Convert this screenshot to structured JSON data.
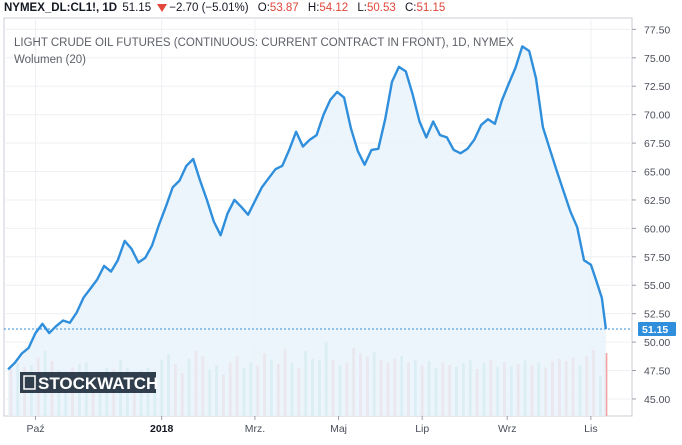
{
  "header": {
    "symbol": "NYMEX_DL:CL1!, 1D",
    "last": "51.15",
    "change": "−2.70 (−5.01%)",
    "o_label": "O:",
    "o_value": "53.87",
    "h_label": "H:",
    "h_value": "54.12",
    "l_label": "L:",
    "l_value": "50.53",
    "c_label": "C:",
    "c_value": "51.15"
  },
  "logo": {
    "text": "STOCKWATCH"
  },
  "colors": {
    "line": "#2f8fdc",
    "area": "#e9f3fc",
    "vol_up": "#8fcfc4",
    "vol_down": "#f2a1a1",
    "change_down": "#e0463a",
    "last_label_bg": "#2f8fdc"
  },
  "chart_data": {
    "type": "line",
    "title": "LIGHT CRUDE OIL FUTURES (CONTINUOUS: CURRENT CONTRACT IN FRONT), 1D, NYMEX",
    "subtitle": "Wolumen (20)",
    "last_value": 51.15,
    "y_ticks": [
      45.0,
      47.5,
      50.0,
      52.5,
      55.0,
      57.5,
      60.0,
      62.5,
      65.0,
      67.5,
      70.0,
      72.5,
      75.0,
      77.5
    ],
    "y_tick_labels": [
      "45.00",
      "47.50",
      "50.00",
      "52.50",
      "55.00",
      "57.50",
      "60.00",
      "62.50",
      "65.00",
      "67.50",
      "70.00",
      "72.50",
      "75.00",
      "77.50"
    ],
    "ylim": [
      43.5,
      78.5
    ],
    "x_tick_labels": [
      "Paź",
      "2018",
      "Mrz.",
      "Maj",
      "Lip",
      "Wrz",
      "Lis"
    ],
    "x_tick_days": [
      18,
      110,
      178,
      239,
      300,
      362,
      423
    ],
    "xlim": [
      -5,
      453
    ],
    "grid": true,
    "price_series": [
      [
        -2,
        47.6
      ],
      [
        3,
        48.2
      ],
      [
        8,
        49.0
      ],
      [
        13,
        49.5
      ],
      [
        18,
        50.8
      ],
      [
        23,
        51.6
      ],
      [
        28,
        50.8
      ],
      [
        33,
        51.4
      ],
      [
        38,
        51.9
      ],
      [
        43,
        51.7
      ],
      [
        48,
        52.6
      ],
      [
        53,
        53.9
      ],
      [
        58,
        54.7
      ],
      [
        63,
        55.5
      ],
      [
        68,
        56.7
      ],
      [
        73,
        56.2
      ],
      [
        78,
        57.2
      ],
      [
        83,
        58.9
      ],
      [
        88,
        58.2
      ],
      [
        93,
        57.0
      ],
      [
        98,
        57.4
      ],
      [
        103,
        58.5
      ],
      [
        108,
        60.3
      ],
      [
        113,
        61.9
      ],
      [
        118,
        63.6
      ],
      [
        123,
        64.2
      ],
      [
        128,
        65.5
      ],
      [
        133,
        66.1
      ],
      [
        138,
        64.2
      ],
      [
        143,
        62.5
      ],
      [
        148,
        60.6
      ],
      [
        153,
        59.4
      ],
      [
        158,
        61.3
      ],
      [
        163,
        62.5
      ],
      [
        168,
        61.9
      ],
      [
        173,
        61.2
      ],
      [
        178,
        62.4
      ],
      [
        183,
        63.6
      ],
      [
        188,
        64.4
      ],
      [
        193,
        65.2
      ],
      [
        198,
        65.5
      ],
      [
        203,
        66.9
      ],
      [
        208,
        68.5
      ],
      [
        213,
        67.2
      ],
      [
        218,
        67.8
      ],
      [
        223,
        68.2
      ],
      [
        228,
        70.0
      ],
      [
        233,
        71.3
      ],
      [
        238,
        72.0
      ],
      [
        243,
        71.5
      ],
      [
        248,
        68.8
      ],
      [
        253,
        66.8
      ],
      [
        258,
        65.6
      ],
      [
        263,
        66.9
      ],
      [
        268,
        67.0
      ],
      [
        273,
        69.6
      ],
      [
        278,
        72.9
      ],
      [
        283,
        74.2
      ],
      [
        288,
        73.8
      ],
      [
        293,
        71.8
      ],
      [
        298,
        69.4
      ],
      [
        303,
        68.0
      ],
      [
        308,
        69.4
      ],
      [
        313,
        68.2
      ],
      [
        318,
        68.0
      ],
      [
        323,
        66.9
      ],
      [
        328,
        66.6
      ],
      [
        333,
        67.0
      ],
      [
        338,
        67.8
      ],
      [
        343,
        69.1
      ],
      [
        348,
        69.6
      ],
      [
        353,
        69.2
      ],
      [
        358,
        71.2
      ],
      [
        363,
        72.7
      ],
      [
        368,
        74.1
      ],
      [
        373,
        76.0
      ],
      [
        378,
        75.6
      ],
      [
        383,
        73.2
      ],
      [
        388,
        68.9
      ],
      [
        393,
        67.0
      ],
      [
        398,
        65.1
      ],
      [
        403,
        63.3
      ],
      [
        408,
        61.5
      ],
      [
        413,
        60.1
      ],
      [
        418,
        57.2
      ],
      [
        423,
        56.8
      ],
      [
        427,
        55.4
      ],
      [
        431,
        53.9
      ],
      [
        434,
        51.15
      ]
    ],
    "volume_series": [
      [
        0,
        1.08,
        "down"
      ],
      [
        5,
        1.2,
        "up"
      ],
      [
        10,
        1.11,
        "down"
      ],
      [
        15,
        1.15,
        "up"
      ],
      [
        20,
        1.32,
        "down"
      ],
      [
        25,
        1.48,
        "up"
      ],
      [
        30,
        1.25,
        "down"
      ],
      [
        35,
        1.05,
        "up"
      ],
      [
        40,
        0.95,
        "up"
      ],
      [
        45,
        1.1,
        "down"
      ],
      [
        50,
        1.18,
        "up"
      ],
      [
        55,
        1.22,
        "up"
      ],
      [
        60,
        0.9,
        "down"
      ],
      [
        65,
        0.97,
        "up"
      ],
      [
        70,
        1.1,
        "up"
      ],
      [
        75,
        1.06,
        "down"
      ],
      [
        80,
        1.27,
        "up"
      ],
      [
        85,
        1.1,
        "up"
      ],
      [
        90,
        0.92,
        "down"
      ],
      [
        95,
        1.05,
        "up"
      ],
      [
        100,
        1.1,
        "up"
      ],
      [
        105,
        1.01,
        "up"
      ],
      [
        110,
        1.27,
        "up"
      ],
      [
        115,
        1.41,
        "up"
      ],
      [
        120,
        1.18,
        "down"
      ],
      [
        125,
        0.98,
        "down"
      ],
      [
        130,
        1.3,
        "up"
      ],
      [
        135,
        1.48,
        "down"
      ],
      [
        140,
        1.36,
        "down"
      ],
      [
        145,
        1.05,
        "up"
      ],
      [
        150,
        1.15,
        "up"
      ],
      [
        155,
        0.95,
        "down"
      ],
      [
        160,
        1.22,
        "down"
      ],
      [
        165,
        1.36,
        "down"
      ],
      [
        170,
        1.1,
        "up"
      ],
      [
        175,
        1.22,
        "up"
      ],
      [
        180,
        1.14,
        "down"
      ],
      [
        185,
        1.42,
        "down"
      ],
      [
        190,
        1.28,
        "up"
      ],
      [
        195,
        1.18,
        "down"
      ],
      [
        200,
        1.53,
        "down"
      ],
      [
        205,
        1.2,
        "up"
      ],
      [
        210,
        1.1,
        "down"
      ],
      [
        215,
        1.48,
        "up"
      ],
      [
        220,
        1.3,
        "up"
      ],
      [
        225,
        1.26,
        "up"
      ],
      [
        230,
        1.68,
        "up"
      ],
      [
        235,
        1.27,
        "down"
      ],
      [
        240,
        1.15,
        "up"
      ],
      [
        245,
        1.2,
        "down"
      ],
      [
        250,
        1.55,
        "down"
      ],
      [
        255,
        1.42,
        "down"
      ],
      [
        260,
        1.35,
        "down"
      ],
      [
        265,
        1.46,
        "up"
      ],
      [
        270,
        1.27,
        "down"
      ],
      [
        275,
        1.2,
        "down"
      ],
      [
        280,
        1.3,
        "down"
      ],
      [
        285,
        1.36,
        "up"
      ],
      [
        290,
        1.22,
        "down"
      ],
      [
        295,
        1.28,
        "up"
      ],
      [
        300,
        1.16,
        "down"
      ],
      [
        305,
        1.25,
        "up"
      ],
      [
        310,
        1.09,
        "up"
      ],
      [
        315,
        1.21,
        "down"
      ],
      [
        320,
        1.16,
        "down"
      ],
      [
        325,
        1.12,
        "up"
      ],
      [
        330,
        1.2,
        "up"
      ],
      [
        335,
        1.27,
        "up"
      ],
      [
        340,
        1.07,
        "down"
      ],
      [
        345,
        1.2,
        "up"
      ],
      [
        350,
        1.28,
        "down"
      ],
      [
        355,
        1.12,
        "up"
      ],
      [
        360,
        1.22,
        "down"
      ],
      [
        365,
        1.13,
        "up"
      ],
      [
        370,
        1.18,
        "down"
      ],
      [
        375,
        1.26,
        "up"
      ],
      [
        380,
        1.16,
        "down"
      ],
      [
        385,
        1.22,
        "up"
      ],
      [
        390,
        1.1,
        "down"
      ],
      [
        395,
        1.24,
        "down"
      ],
      [
        400,
        1.3,
        "down"
      ],
      [
        405,
        1.25,
        "down"
      ],
      [
        410,
        1.32,
        "down"
      ],
      [
        415,
        1.15,
        "up"
      ],
      [
        420,
        1.36,
        "down"
      ],
      [
        425,
        1.5,
        "down"
      ],
      [
        430,
        0.9,
        "up"
      ],
      [
        434,
        1.43,
        "down"
      ]
    ],
    "volume_max": 2.0
  }
}
